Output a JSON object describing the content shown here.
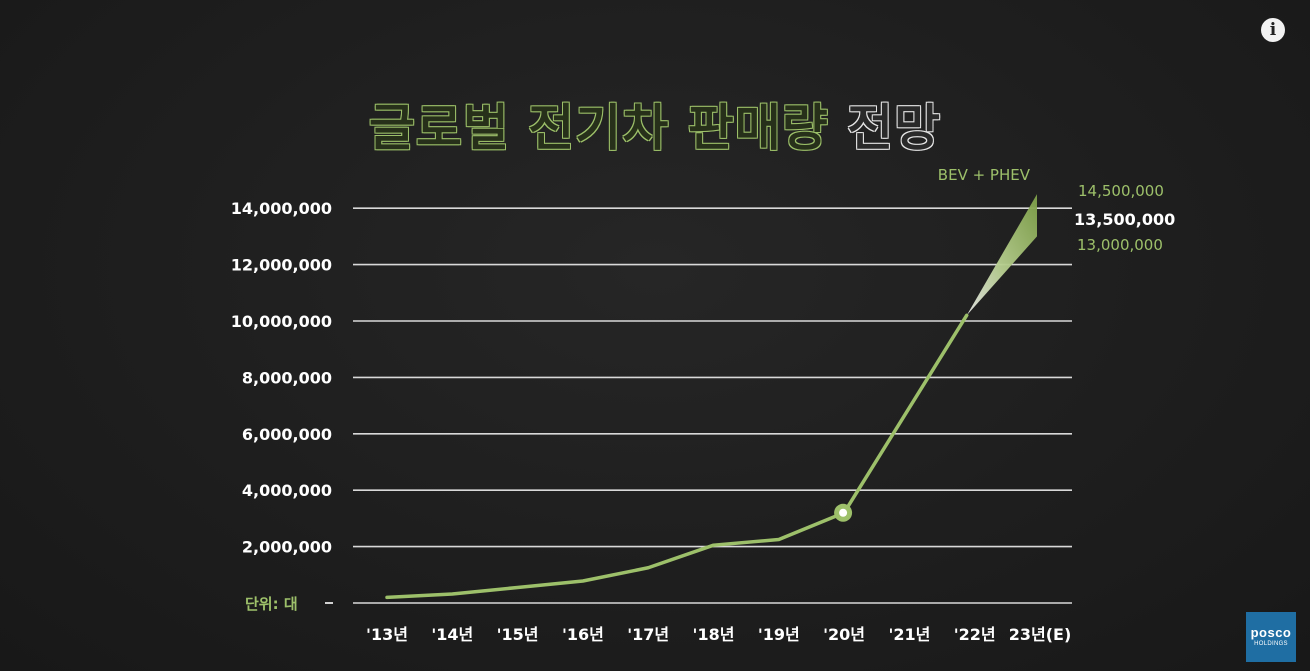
{
  "title": {
    "part_green": "글로벌 전기차 판매량",
    "part_white": "전망"
  },
  "unit_label": "단위: 대",
  "zero_tick_label": "-",
  "info_icon": "info-icon",
  "logo": {
    "line1": "posco",
    "line2": "HOLDINGS"
  },
  "colors": {
    "accent": "#9dc06a",
    "grid": "#d9d9d9",
    "text": "#ffffff",
    "background": "#202020"
  },
  "chart_data": {
    "type": "line",
    "categories": [
      "'13년",
      "'14년",
      "'15년",
      "'16년",
      "'17년",
      "'18년",
      "'19년",
      "'20년",
      "'21년",
      "'22년",
      "23년(E)"
    ],
    "series": [
      {
        "name": "BEV + PHEV",
        "values": [
          200000,
          320000,
          550000,
          780000,
          1250000,
          2050000,
          2250000,
          3200000,
          null,
          10200000,
          13500000
        ]
      }
    ],
    "forecast_range": {
      "x": "23년(E)",
      "high": 14500000,
      "mid": 13500000,
      "low": 13000000
    },
    "highlight_point": {
      "x": "'20년",
      "value": 3200000
    },
    "right_labels": [
      "14,500,000",
      "13,500,000",
      "13,000,000"
    ],
    "yticks": [
      0,
      2000000,
      4000000,
      6000000,
      8000000,
      10000000,
      12000000,
      14000000
    ],
    "ytick_labels": [
      "-",
      "2,000,000",
      "4,000,000",
      "6,000,000",
      "8,000,000",
      "10,000,000",
      "12,000,000",
      "14,000,000"
    ],
    "ylim": [
      0,
      15000000
    ],
    "grid": true,
    "legend": "top-right"
  }
}
